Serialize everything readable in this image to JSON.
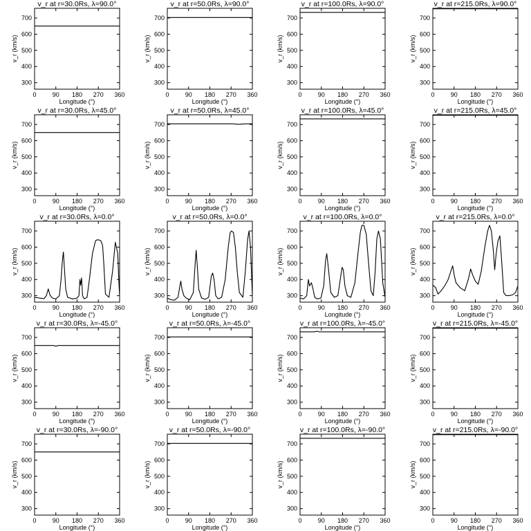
{
  "chart_data": {
    "type": "line",
    "rows": 5,
    "cols": 4,
    "shared_xlabel": "Longitude (°)",
    "shared_ylabel": "v_r (km/s)",
    "xlim": [
      0,
      360
    ],
    "ylim": [
      260,
      760
    ],
    "xticks": [
      0,
      90,
      180,
      270,
      360
    ],
    "yticks": [
      300,
      400,
      500,
      600,
      700
    ],
    "panels": [
      {
        "title": "v_r at r=30.0Rs, λ=90.0°",
        "x": [
          0,
          360
        ],
        "y": [
          650,
          650
        ]
      },
      {
        "title": "v_r at r=50.0Rs, λ=90.0°",
        "x": [
          0,
          360
        ],
        "y": [
          703,
          703
        ]
      },
      {
        "title": "v_r at r=100.0Rs, λ=90.0°",
        "x": [
          0,
          360
        ],
        "y": [
          735,
          735
        ]
      },
      {
        "title": "v_r at r=215.0Rs, λ=90.0°",
        "x": [
          0,
          360
        ],
        "y": [
          757,
          757
        ]
      },
      {
        "title": "v_r at r=30.0Rs, λ=45.0°",
        "x": [
          0,
          360
        ],
        "y": [
          650,
          650
        ]
      },
      {
        "title": "v_r at r=50.0Rs, λ=45.0°",
        "x": [
          0,
          280,
          300,
          330,
          360
        ],
        "y": [
          704,
          704,
          701,
          704,
          704
        ]
      },
      {
        "title": "v_r at r=100.0Rs, λ=45.0°",
        "x": [
          0,
          360
        ],
        "y": [
          735,
          735
        ]
      },
      {
        "title": "v_r at r=215.0Rs, λ=45.0°",
        "x": [
          0,
          360
        ],
        "y": [
          757,
          757
        ]
      },
      {
        "title": "v_r at r=30.0Rs, λ=0.0°",
        "x": [
          0,
          20,
          40,
          50,
          58,
          65,
          75,
          90,
          105,
          112,
          118,
          122,
          126,
          132,
          140,
          160,
          178,
          188,
          192,
          195,
          199,
          203,
          210,
          222,
          232,
          245,
          258,
          265,
          272,
          280,
          288,
          293,
          300,
          315,
          330,
          342,
          352,
          358,
          360
        ],
        "y": [
          290,
          285,
          282,
          300,
          342,
          305,
          285,
          280,
          300,
          400,
          520,
          570,
          480,
          340,
          290,
          280,
          283,
          300,
          400,
          365,
          410,
          300,
          280,
          290,
          400,
          560,
          640,
          645,
          645,
          640,
          610,
          500,
          310,
          290,
          450,
          630,
          560,
          350,
          300
        ]
      },
      {
        "title": "v_r at r=50.0Rs, λ=0.0°",
        "x": [
          0,
          15,
          30,
          45,
          52,
          57,
          62,
          70,
          80,
          95,
          110,
          118,
          122,
          127,
          133,
          145,
          160,
          175,
          186,
          192,
          198,
          205,
          215,
          230,
          245,
          258,
          266,
          272,
          280,
          288,
          296,
          305,
          320,
          330,
          340,
          346,
          352,
          360
        ],
        "y": [
          285,
          275,
          272,
          290,
          350,
          390,
          340,
          300,
          285,
          275,
          320,
          500,
          580,
          480,
          340,
          285,
          278,
          290,
          420,
          440,
          400,
          300,
          280,
          290,
          400,
          600,
          690,
          700,
          690,
          600,
          450,
          320,
          290,
          450,
          650,
          700,
          600,
          300
        ]
      },
      {
        "title": "v_r at r=100.0Rs, λ=0.0°",
        "x": [
          0,
          15,
          28,
          35,
          40,
          48,
          55,
          62,
          72,
          88,
          100,
          108,
          113,
          120,
          130,
          145,
          160,
          172,
          178,
          183,
          190,
          200,
          215,
          232,
          245,
          255,
          262,
          270,
          280,
          290,
          300,
          310,
          318,
          325,
          332,
          340,
          350,
          360
        ],
        "y": [
          285,
          280,
          300,
          400,
          360,
          380,
          340,
          290,
          280,
          285,
          360,
          520,
          560,
          470,
          320,
          290,
          300,
          420,
          475,
          460,
          360,
          300,
          290,
          380,
          560,
          690,
          735,
          735,
          680,
          500,
          330,
          300,
          450,
          650,
          700,
          650,
          380,
          290
        ]
      },
      {
        "title": "v_r at r=215.0Rs, λ=0.0°",
        "x": [
          0,
          12,
          22,
          35,
          50,
          65,
          76,
          84,
          90,
          98,
          115,
          135,
          150,
          160,
          168,
          180,
          192,
          205,
          220,
          232,
          240,
          248,
          256,
          262,
          268,
          276,
          284,
          292,
          300,
          310,
          322,
          338,
          350,
          360
        ],
        "y": [
          365,
          350,
          310,
          330,
          360,
          400,
          450,
          485,
          430,
          380,
          350,
          330,
          400,
          465,
          430,
          390,
          370,
          450,
          600,
          700,
          735,
          700,
          580,
          460,
          560,
          640,
          670,
          500,
          320,
          300,
          300,
          305,
          320,
          360
        ]
      },
      {
        "title": "v_r at r=30.0Rs, λ=-45.0°",
        "x": [
          0,
          80,
          90,
          100,
          360
        ],
        "y": [
          650,
          650,
          646,
          650,
          650
        ]
      },
      {
        "title": "v_r at r=50.0Rs, λ=-45.0°",
        "x": [
          0,
          360
        ],
        "y": [
          703,
          703
        ]
      },
      {
        "title": "v_r at r=100.0Rs, λ=-45.0°",
        "x": [
          0,
          60,
          72,
          80,
          360
        ],
        "y": [
          735,
          735,
          738,
          735,
          735
        ]
      },
      {
        "title": "v_r at r=215.0Rs, λ=-45.0°",
        "x": [
          0,
          360
        ],
        "y": [
          757,
          757
        ]
      },
      {
        "title": "v_r at r=30.0Rs, λ=-90.0°",
        "x": [
          0,
          360
        ],
        "y": [
          650,
          650
        ]
      },
      {
        "title": "v_r at r=50.0Rs, λ=-90.0°",
        "x": [
          0,
          360
        ],
        "y": [
          703,
          703
        ]
      },
      {
        "title": "v_r at r=100.0Rs, λ=-90.0°",
        "x": [
          0,
          360
        ],
        "y": [
          735,
          735
        ]
      },
      {
        "title": "v_r at r=215.0Rs, λ=-90.0°",
        "x": [
          0,
          360
        ],
        "y": [
          757,
          757
        ]
      }
    ]
  }
}
